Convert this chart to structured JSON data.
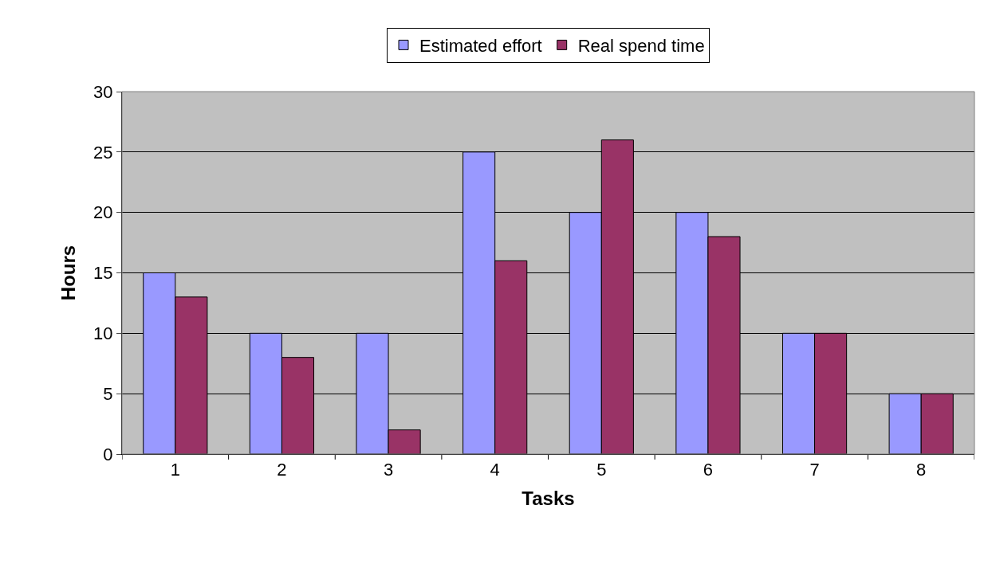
{
  "chart_data": {
    "type": "bar",
    "xlabel": "Tasks",
    "ylabel": "Hours",
    "categories": [
      "1",
      "2",
      "3",
      "4",
      "5",
      "6",
      "7",
      "8"
    ],
    "series": [
      {
        "name": "Estimated effort",
        "color": "#9999ff",
        "values": [
          15,
          10,
          10,
          25,
          20,
          20,
          10,
          5
        ]
      },
      {
        "name": "Real spend time",
        "color": "#993366",
        "values": [
          13,
          8,
          2,
          16,
          26,
          18,
          10,
          5
        ]
      }
    ],
    "ylim": [
      0,
      30
    ],
    "yticks": [
      0,
      5,
      10,
      15,
      20,
      25,
      30
    ],
    "grid": "y",
    "legend": "top"
  }
}
